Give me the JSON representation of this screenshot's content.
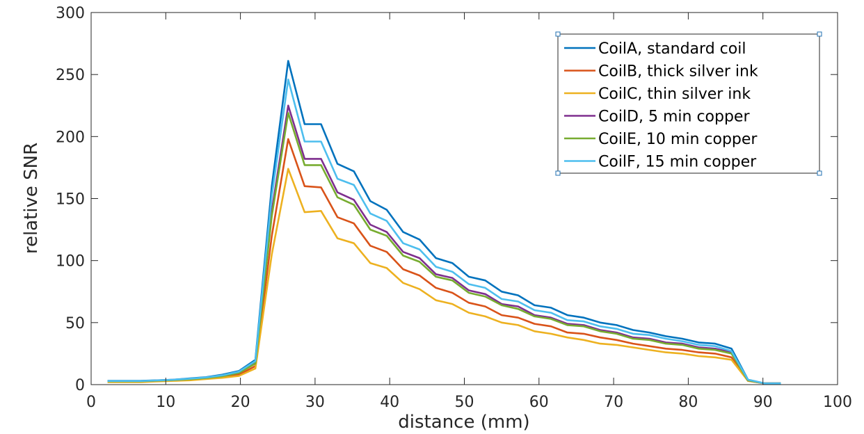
{
  "chart_data": {
    "type": "line",
    "title": "",
    "xlabel": "distance (mm)",
    "ylabel": "relative SNR",
    "xlim": [
      0,
      100
    ],
    "ylim": [
      0,
      300
    ],
    "xticks": [
      "0",
      "10",
      "20",
      "30",
      "40",
      "50",
      "60",
      "70",
      "80",
      "90",
      "100"
    ],
    "yticks": [
      "0",
      "50",
      "100",
      "150",
      "200",
      "250",
      "300"
    ],
    "grid": false,
    "legend_position": "top-right",
    "x": [
      2.2,
      4.4,
      6.6,
      8.8,
      11.0,
      13.2,
      15.4,
      17.6,
      19.8,
      22.0,
      24.2,
      26.4,
      28.6,
      30.8,
      33.0,
      35.2,
      37.4,
      39.6,
      41.8,
      44.0,
      46.2,
      48.4,
      50.6,
      52.8,
      55.0,
      57.2,
      59.4,
      61.6,
      63.8,
      66.0,
      68.2,
      70.4,
      72.6,
      74.8,
      77.0,
      79.2,
      81.4,
      83.6,
      85.8,
      88.0,
      90.2,
      92.4
    ],
    "series": [
      {
        "name": "CoilA, standard coil",
        "color": "#0072BD",
        "values": [
          3,
          3,
          3,
          3.5,
          4,
          5,
          6,
          8,
          11,
          20,
          160,
          261,
          210,
          210,
          178,
          172,
          148,
          141,
          123,
          117,
          102,
          98,
          87,
          84,
          75,
          72,
          64,
          62,
          56,
          54,
          50,
          48,
          44,
          42,
          39,
          37,
          34,
          33,
          29,
          4,
          1,
          1
        ]
      },
      {
        "name": "CoilB, thick silver ink",
        "color": "#D95319",
        "values": [
          2.5,
          2.5,
          2.5,
          3,
          3.5,
          4,
          5,
          6.5,
          8,
          15,
          120,
          198,
          160,
          159,
          135,
          130,
          112,
          107,
          93,
          88,
          78,
          74,
          66,
          63,
          56,
          54,
          49,
          47,
          42,
          41,
          38,
          36,
          33,
          31,
          29,
          28,
          26,
          25,
          22,
          3,
          1,
          1
        ]
      },
      {
        "name": "CoilC, thin silver ink",
        "color": "#EDB120",
        "values": [
          2,
          2,
          2,
          2.5,
          3,
          3.5,
          4.5,
          5.5,
          7,
          13,
          105,
          174,
          139,
          140,
          118,
          114,
          98,
          94,
          82,
          77,
          68,
          65,
          58,
          55,
          50,
          48,
          43,
          41,
          38,
          36,
          33,
          32,
          30,
          28,
          26,
          25,
          23,
          22,
          20,
          3,
          1,
          1
        ]
      },
      {
        "name": "CoilD, 5 min copper",
        "color": "#7E2F8E",
        "values": [
          2.8,
          2.8,
          2.8,
          3.3,
          3.8,
          4.5,
          5.5,
          7,
          10,
          18,
          140,
          225,
          182,
          182,
          155,
          149,
          129,
          123,
          107,
          102,
          89,
          86,
          76,
          73,
          65,
          63,
          56,
          54,
          49,
          48,
          44,
          42,
          38,
          37,
          34,
          33,
          30,
          29,
          26,
          3.5,
          1,
          1
        ]
      },
      {
        "name": "CoilE, 10 min copper",
        "color": "#77AC30",
        "values": [
          2.7,
          2.7,
          2.7,
          3.2,
          3.7,
          4.4,
          5.4,
          6.8,
          9.5,
          17,
          136,
          219,
          177,
          177,
          151,
          145,
          125,
          120,
          104,
          99,
          87,
          84,
          74,
          71,
          64,
          61,
          55,
          53,
          48,
          47,
          43,
          41,
          37,
          36,
          33,
          32,
          29,
          28,
          25,
          3.5,
          1,
          1
        ]
      },
      {
        "name": "CoilF, 15 min copper",
        "color": "#4DBEEE",
        "values": [
          2.9,
          2.9,
          2.9,
          3.4,
          3.9,
          4.8,
          5.8,
          7.5,
          10.5,
          19,
          152,
          246,
          196,
          196,
          166,
          161,
          138,
          132,
          114,
          109,
          95,
          91,
          81,
          78,
          69,
          67,
          60,
          58,
          52,
          51,
          47,
          45,
          41,
          40,
          37,
          35,
          32,
          31,
          27,
          4,
          1,
          1
        ]
      }
    ]
  }
}
